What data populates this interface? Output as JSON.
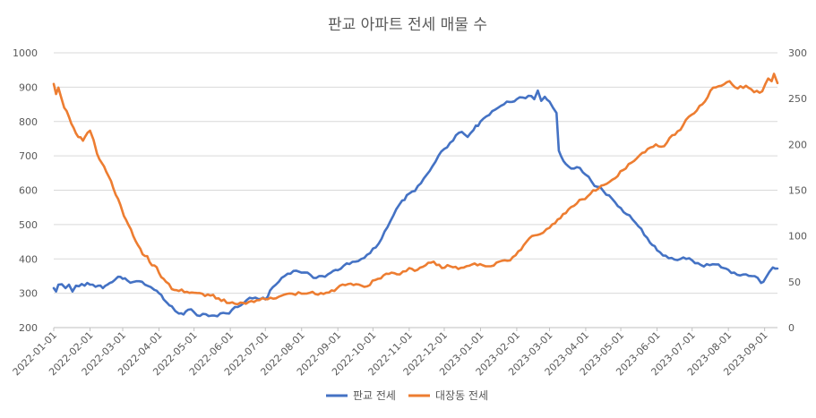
{
  "chart_data": {
    "type": "line",
    "title": "판교 아파트 전세 매물 수",
    "xlabel": "",
    "ylabel": "",
    "y_left": {
      "min": 200,
      "max": 1000,
      "step": 100,
      "ticks": [
        "200",
        "300",
        "400",
        "500",
        "600",
        "700",
        "800",
        "900",
        "1000"
      ]
    },
    "y_right": {
      "min": 0,
      "max": 300,
      "step": 50,
      "ticks": [
        "0",
        "50",
        "100",
        "150",
        "200",
        "250",
        "300"
      ]
    },
    "x_range": [
      "2022-01-01",
      "2023-09-12"
    ],
    "x_ticks": [
      "2022-01-01",
      "2022-02-01",
      "2022-03-01",
      "2022-04-01",
      "2022-05-01",
      "2022-06-01",
      "2022-07-01",
      "2022-08-01",
      "2022-09-01",
      "2022-10-01",
      "2022-11-01",
      "2022-12-01",
      "2023-01-01",
      "2023-02-01",
      "2023-03-01",
      "2023-04-01",
      "2023-05-01",
      "2023-06-01",
      "2023-07-01",
      "2023-08-01",
      "2023-09-01"
    ],
    "grid": true,
    "legend_position": "bottom",
    "series": [
      {
        "name": "판교 전세",
        "axis": "left",
        "color": "#4472C4",
        "points": [
          [
            "2022-01-01",
            315
          ],
          [
            "2022-01-03",
            305
          ],
          [
            "2022-01-05",
            325
          ],
          [
            "2022-01-08",
            326
          ],
          [
            "2022-01-11",
            315
          ],
          [
            "2022-01-14",
            325
          ],
          [
            "2022-01-17",
            305
          ],
          [
            "2022-01-20",
            322
          ],
          [
            "2022-01-25",
            327
          ],
          [
            "2022-02-01",
            325
          ],
          [
            "2022-02-08",
            322
          ],
          [
            "2022-02-12",
            315
          ],
          [
            "2022-02-18",
            330
          ],
          [
            "2022-02-22",
            338
          ],
          [
            "2022-02-25",
            348
          ],
          [
            "2022-03-01",
            342
          ],
          [
            "2022-03-05",
            337
          ],
          [
            "2022-03-10",
            333
          ],
          [
            "2022-03-15",
            335
          ],
          [
            "2022-03-20",
            325
          ],
          [
            "2022-03-25",
            318
          ],
          [
            "2022-03-28",
            310
          ],
          [
            "2022-04-01",
            300
          ],
          [
            "2022-04-05",
            282
          ],
          [
            "2022-04-08",
            272
          ],
          [
            "2022-04-12",
            262
          ],
          [
            "2022-04-15",
            248
          ],
          [
            "2022-04-18",
            241
          ],
          [
            "2022-04-22",
            238
          ],
          [
            "2022-04-26",
            252
          ],
          [
            "2022-05-01",
            245
          ],
          [
            "2022-05-06",
            234
          ],
          [
            "2022-05-11",
            239
          ],
          [
            "2022-05-16",
            235
          ],
          [
            "2022-05-21",
            233
          ],
          [
            "2022-05-26",
            243
          ],
          [
            "2022-05-31",
            241
          ],
          [
            "2022-06-05",
            260
          ],
          [
            "2022-06-10",
            265
          ],
          [
            "2022-06-15",
            280
          ],
          [
            "2022-06-20",
            285
          ],
          [
            "2022-06-25",
            283
          ],
          [
            "2022-07-01",
            282
          ],
          [
            "2022-07-05",
            308
          ],
          [
            "2022-07-10",
            325
          ],
          [
            "2022-07-15",
            345
          ],
          [
            "2022-07-20",
            357
          ],
          [
            "2022-07-25",
            365
          ],
          [
            "2022-08-01",
            360
          ],
          [
            "2022-08-06",
            360
          ],
          [
            "2022-08-11",
            345
          ],
          [
            "2022-08-16",
            350
          ],
          [
            "2022-08-21",
            348
          ],
          [
            "2022-08-26",
            360
          ],
          [
            "2022-09-01",
            367
          ],
          [
            "2022-09-06",
            380
          ],
          [
            "2022-09-11",
            385
          ],
          [
            "2022-09-16",
            392
          ],
          [
            "2022-09-21",
            400
          ],
          [
            "2022-09-26",
            412
          ],
          [
            "2022-10-01",
            430
          ],
          [
            "2022-10-06",
            445
          ],
          [
            "2022-10-11",
            480
          ],
          [
            "2022-10-16",
            510
          ],
          [
            "2022-10-21",
            545
          ],
          [
            "2022-10-26",
            570
          ],
          [
            "2022-11-01",
            590
          ],
          [
            "2022-11-06",
            598
          ],
          [
            "2022-11-11",
            620
          ],
          [
            "2022-11-16",
            645
          ],
          [
            "2022-11-21",
            670
          ],
          [
            "2022-11-26",
            700
          ],
          [
            "2022-12-01",
            720
          ],
          [
            "2022-12-06",
            738
          ],
          [
            "2022-12-11",
            760
          ],
          [
            "2022-12-16",
            770
          ],
          [
            "2022-12-21",
            755
          ],
          [
            "2022-12-26",
            775
          ],
          [
            "2023-01-01",
            800
          ],
          [
            "2023-01-06",
            815
          ],
          [
            "2023-01-11",
            830
          ],
          [
            "2023-01-16",
            840
          ],
          [
            "2023-01-21",
            850
          ],
          [
            "2023-01-26",
            857
          ],
          [
            "2023-02-01",
            865
          ],
          [
            "2023-02-06",
            870
          ],
          [
            "2023-02-11",
            875
          ],
          [
            "2023-02-16",
            865
          ],
          [
            "2023-02-19",
            890
          ],
          [
            "2023-02-22",
            860
          ],
          [
            "2023-02-25",
            872
          ],
          [
            "2023-03-01",
            858
          ],
          [
            "2023-03-04",
            840
          ],
          [
            "2023-03-07",
            825
          ],
          [
            "2023-03-09",
            715
          ],
          [
            "2023-03-13",
            685
          ],
          [
            "2023-03-17",
            670
          ],
          [
            "2023-03-22",
            663
          ],
          [
            "2023-03-27",
            665
          ],
          [
            "2023-04-01",
            645
          ],
          [
            "2023-04-06",
            625
          ],
          [
            "2023-04-11",
            610
          ],
          [
            "2023-04-16",
            598
          ],
          [
            "2023-04-21",
            585
          ],
          [
            "2023-04-26",
            565
          ],
          [
            "2023-05-01",
            548
          ],
          [
            "2023-05-06",
            530
          ],
          [
            "2023-05-11",
            515
          ],
          [
            "2023-05-16",
            495
          ],
          [
            "2023-05-21",
            470
          ],
          [
            "2023-05-26",
            447
          ],
          [
            "2023-06-01",
            425
          ],
          [
            "2023-06-06",
            410
          ],
          [
            "2023-06-11",
            402
          ],
          [
            "2023-06-16",
            398
          ],
          [
            "2023-06-21",
            400
          ],
          [
            "2023-06-26",
            400
          ],
          [
            "2023-07-01",
            396
          ],
          [
            "2023-07-06",
            388
          ],
          [
            "2023-07-11",
            378
          ],
          [
            "2023-07-16",
            382
          ],
          [
            "2023-07-21",
            384
          ],
          [
            "2023-07-26",
            375
          ],
          [
            "2023-08-01",
            368
          ],
          [
            "2023-08-06",
            360
          ],
          [
            "2023-08-11",
            352
          ],
          [
            "2023-08-16",
            355
          ],
          [
            "2023-08-21",
            350
          ],
          [
            "2023-08-26",
            345
          ],
          [
            "2023-08-29",
            330
          ],
          [
            "2023-09-02",
            345
          ],
          [
            "2023-09-05",
            362
          ],
          [
            "2023-09-08",
            375
          ],
          [
            "2023-09-12",
            372
          ]
        ]
      },
      {
        "name": "대장동 전세",
        "axis": "right",
        "color": "#ED7D31",
        "points": [
          [
            "2022-01-01",
            266
          ],
          [
            "2022-01-03",
            255
          ],
          [
            "2022-01-05",
            262
          ],
          [
            "2022-01-07",
            253
          ],
          [
            "2022-01-10",
            240
          ],
          [
            "2022-01-14",
            230
          ],
          [
            "2022-01-18",
            218
          ],
          [
            "2022-01-22",
            208
          ],
          [
            "2022-01-26",
            204
          ],
          [
            "2022-02-01",
            215
          ],
          [
            "2022-02-04",
            205
          ],
          [
            "2022-02-07",
            190
          ],
          [
            "2022-02-11",
            180
          ],
          [
            "2022-02-15",
            170
          ],
          [
            "2022-02-19",
            160
          ],
          [
            "2022-02-23",
            145
          ],
          [
            "2022-02-27",
            134
          ],
          [
            "2022-03-02",
            122
          ],
          [
            "2022-03-06",
            112
          ],
          [
            "2022-03-10",
            100
          ],
          [
            "2022-03-14",
            90
          ],
          [
            "2022-03-18",
            80
          ],
          [
            "2022-03-22",
            78
          ],
          [
            "2022-03-26",
            68
          ],
          [
            "2022-03-30",
            66
          ],
          [
            "2022-04-03",
            55
          ],
          [
            "2022-04-07",
            50
          ],
          [
            "2022-04-12",
            42
          ],
          [
            "2022-04-18",
            40
          ],
          [
            "2022-04-25",
            39
          ],
          [
            "2022-05-01",
            38
          ],
          [
            "2022-05-08",
            37
          ],
          [
            "2022-05-15",
            35
          ],
          [
            "2022-05-22",
            32
          ],
          [
            "2022-05-29",
            27
          ],
          [
            "2022-06-05",
            26
          ],
          [
            "2022-06-12",
            27
          ],
          [
            "2022-06-19",
            29
          ],
          [
            "2022-06-26",
            30
          ],
          [
            "2022-07-03",
            31
          ],
          [
            "2022-07-10",
            32
          ],
          [
            "2022-07-17",
            36
          ],
          [
            "2022-07-24",
            37
          ],
          [
            "2022-08-01",
            37
          ],
          [
            "2022-08-08",
            38
          ],
          [
            "2022-08-15",
            36
          ],
          [
            "2022-08-22",
            38
          ],
          [
            "2022-08-29",
            40
          ],
          [
            "2022-09-05",
            47
          ],
          [
            "2022-09-12",
            48
          ],
          [
            "2022-09-19",
            47
          ],
          [
            "2022-09-26",
            45
          ],
          [
            "2022-10-03",
            52
          ],
          [
            "2022-10-10",
            57
          ],
          [
            "2022-10-17",
            60
          ],
          [
            "2022-10-24",
            58
          ],
          [
            "2022-11-01",
            65
          ],
          [
            "2022-11-08",
            63
          ],
          [
            "2022-11-15",
            68
          ],
          [
            "2022-11-22",
            72
          ],
          [
            "2022-11-29",
            65
          ],
          [
            "2022-12-06",
            67
          ],
          [
            "2022-12-13",
            64
          ],
          [
            "2022-12-20",
            67
          ],
          [
            "2022-12-27",
            70
          ],
          [
            "2023-01-03",
            68
          ],
          [
            "2023-01-10",
            67
          ],
          [
            "2023-01-17",
            72
          ],
          [
            "2023-01-24",
            73
          ],
          [
            "2023-01-31",
            79
          ],
          [
            "2023-02-07",
            90
          ],
          [
            "2023-02-14",
            100
          ],
          [
            "2023-02-21",
            102
          ],
          [
            "2023-03-01",
            109
          ],
          [
            "2023-03-08",
            118
          ],
          [
            "2023-03-15",
            125
          ],
          [
            "2023-03-22",
            133
          ],
          [
            "2023-03-29",
            140
          ],
          [
            "2023-04-05",
            146
          ],
          [
            "2023-04-12",
            152
          ],
          [
            "2023-04-19",
            157
          ],
          [
            "2023-04-26",
            163
          ],
          [
            "2023-05-03",
            172
          ],
          [
            "2023-05-10",
            180
          ],
          [
            "2023-05-17",
            188
          ],
          [
            "2023-05-24",
            195
          ],
          [
            "2023-05-31",
            200
          ],
          [
            "2023-06-07",
            198
          ],
          [
            "2023-06-14",
            210
          ],
          [
            "2023-06-21",
            216
          ],
          [
            "2023-06-28",
            230
          ],
          [
            "2023-07-05",
            237
          ],
          [
            "2023-07-12",
            247
          ],
          [
            "2023-07-19",
            262
          ],
          [
            "2023-07-26",
            264
          ],
          [
            "2023-08-02",
            269
          ],
          [
            "2023-08-09",
            261
          ],
          [
            "2023-08-16",
            264
          ],
          [
            "2023-08-23",
            257
          ],
          [
            "2023-08-30",
            258
          ],
          [
            "2023-09-04",
            272
          ],
          [
            "2023-09-07",
            269
          ],
          [
            "2023-09-09",
            277
          ],
          [
            "2023-09-12",
            267
          ]
        ]
      }
    ]
  }
}
